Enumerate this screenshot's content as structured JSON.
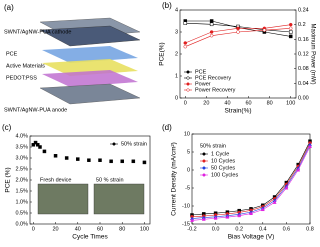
{
  "diagram": {
    "label": "(a)",
    "layers": [
      "SWNT/AgNW-PUA cathode",
      "PCE",
      "Active Materials",
      "PEDOT:PSS",
      "SWNT/AgNW-PUA anode"
    ]
  },
  "chart_data": [
    {
      "type": "line",
      "label": "(b)",
      "x_label": "Strain(%)",
      "y_label": "PCE(%)",
      "y2_label": "Maximum Power (mW)",
      "x": [
        0,
        25,
        50,
        75,
        100
      ],
      "xlim": [
        -5,
        105
      ],
      "xticks": [
        0,
        20,
        40,
        60,
        80,
        100
      ],
      "ylim": [
        0,
        4
      ],
      "yticks": [
        0,
        1,
        2,
        3,
        4
      ],
      "y2lim": [
        0,
        0.24
      ],
      "y2ticks": [
        {
          "value": 0,
          "label": "0.00"
        },
        0.04,
        0.08,
        0.12,
        0.16,
        0.2,
        0.24
      ],
      "legend": "lower-left",
      "series": [
        {
          "name": "PCE",
          "color": "#000000",
          "marker": "square",
          "open": false,
          "values": [
            3.5,
            3.5,
            3.2,
            3.0,
            2.8
          ]
        },
        {
          "name": "PCE Recovery",
          "color": "#000000",
          "marker": "square",
          "open": true,
          "values": [
            3.4,
            3.35,
            3.25,
            3.1,
            3.0
          ]
        },
        {
          "name": "Power",
          "color": "#e02020",
          "marker": "circle",
          "open": false,
          "axis": "y2",
          "values": [
            0.15,
            0.18,
            0.19,
            0.19,
            0.2
          ]
        },
        {
          "name": "Power Recovery",
          "color": "#e02020",
          "marker": "circle",
          "open": true,
          "axis": "y2",
          "values": [
            0.14,
            0.17,
            0.18,
            0.185,
            0.19
          ]
        }
      ]
    },
    {
      "type": "scatter",
      "label": "(c)",
      "x_label": "Cycle Times",
      "y_label": "PCE (%)",
      "x": [
        0,
        2,
        4,
        6,
        10,
        20,
        30,
        40,
        50,
        60,
        70,
        80,
        90,
        100
      ],
      "xlim": [
        -3,
        105
      ],
      "xticks": [
        0,
        20,
        40,
        60,
        80,
        100
      ],
      "ylim": [
        0,
        4
      ],
      "yticks": [
        {
          "value": 0,
          "label": "0.0%"
        },
        {
          "value": 0.5,
          "label": "0.5%"
        },
        {
          "value": 1,
          "label": "1.0%"
        },
        {
          "value": 1.5,
          "label": "1.5%"
        },
        {
          "value": 2,
          "label": "2.0%"
        },
        {
          "value": 2.5,
          "label": "2.5%"
        },
        {
          "value": 3,
          "label": "3.0%"
        },
        {
          "value": 3.5,
          "label": "3.5%"
        },
        {
          "value": 4,
          "label": "4.0%"
        }
      ],
      "legend": "upper-right",
      "insets": [
        "Fresh device",
        "50 % strain"
      ],
      "series": [
        {
          "name": "50% strain",
          "color": "#000000",
          "marker": "square",
          "open": false,
          "values": [
            3.6,
            3.7,
            3.6,
            3.5,
            3.3,
            3.1,
            3.0,
            2.95,
            2.9,
            2.9,
            2.85,
            2.85,
            2.85,
            2.8
          ]
        }
      ]
    },
    {
      "type": "line",
      "label": "(d)",
      "x_label": "Bias Voltage (V)",
      "y_label": "Current Density (mA/cm²)",
      "annotation": "50% strain",
      "x": [
        -0.2,
        -0.1,
        0,
        0.1,
        0.2,
        0.3,
        0.4,
        0.5,
        0.6,
        0.7,
        0.8
      ],
      "xlim": [
        -0.2,
        0.8
      ],
      "xticks": [
        -0.2,
        {
          "value": 0,
          "label": "0.0"
        },
        0.2,
        0.4,
        0.6,
        0.8
      ],
      "ylim": [
        -15,
        10
      ],
      "yticks": [
        -15,
        -10,
        -5,
        0,
        5,
        10
      ],
      "legend": "upper-left",
      "series": [
        {
          "name": "1 Cycle",
          "color": "#000000",
          "marker": "square",
          "open": false,
          "values": [
            -12.5,
            -12.2,
            -12,
            -11.7,
            -11.3,
            -10.8,
            -9.8,
            -7.5,
            -3.5,
            1.5,
            8
          ]
        },
        {
          "name": "10 Cycles",
          "color": "#e02020",
          "marker": "circle",
          "open": false,
          "values": [
            -13,
            -12.8,
            -12.5,
            -12.2,
            -11.8,
            -11.2,
            -10.2,
            -8,
            -4,
            1,
            7.5
          ]
        },
        {
          "name": "50 Cycles",
          "color": "#2040e0",
          "marker": "triangle",
          "open": false,
          "values": [
            -13.5,
            -13.2,
            -13,
            -12.7,
            -12.3,
            -11.7,
            -10.6,
            -8.5,
            -4.5,
            0.5,
            7
          ]
        },
        {
          "name": "100 Cycles",
          "color": "#e020e0",
          "marker": "triangle",
          "open": false,
          "values": [
            -14,
            -13.7,
            -13.4,
            -13.1,
            -12.7,
            -12.1,
            -11,
            -9,
            -5,
            0,
            6.5
          ]
        }
      ]
    }
  ]
}
